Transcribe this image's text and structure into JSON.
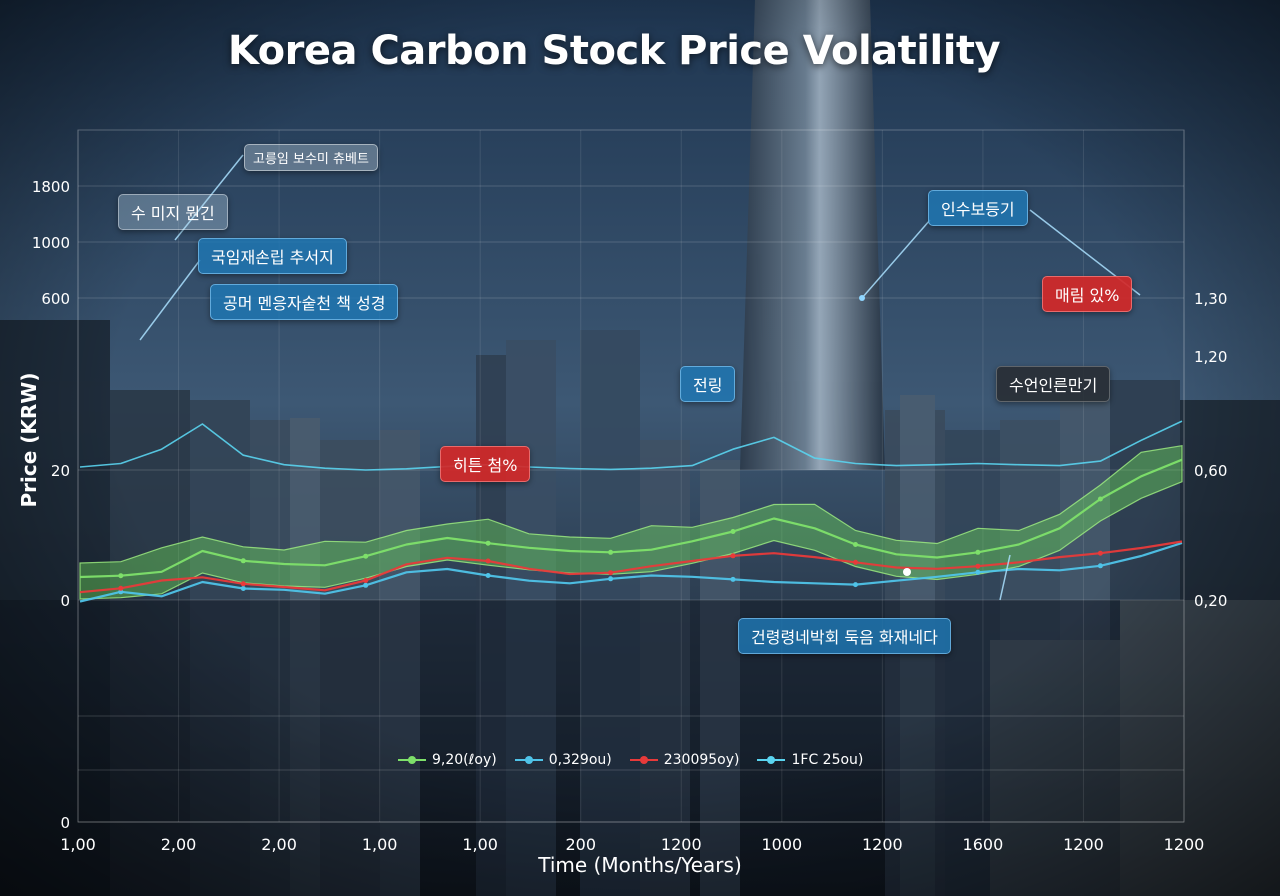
{
  "chart_data": {
    "type": "line",
    "title": "Korea Carbon Stock Price Volatility",
    "xlabel": "Time (Months/Years)",
    "ylabel": "Price (KRW)",
    "x_tick_labels": [
      "1,00",
      "2,00",
      "2,00",
      "1,00",
      "1,00",
      "200",
      "1200",
      "1000",
      "1200",
      "1600",
      "1200",
      "1200"
    ],
    "y_tick_labels_left": [
      "0",
      "0",
      "20",
      "600",
      "1000",
      "1800"
    ],
    "y_tick_labels_right": [
      "0,20",
      "0,60",
      "1,20",
      "1,30"
    ],
    "grid": true,
    "legend_position": "bottom-center",
    "series": [
      {
        "name": "9,20(ℓoy)",
        "color": "#7ee06a",
        "values": [
          20,
          22,
          28,
          60,
          45,
          40,
          38,
          52,
          70,
          80,
          72,
          65,
          60,
          58,
          62,
          75,
          90,
          110,
          95,
          70,
          55,
          50,
          58,
          70,
          95,
          140,
          175,
          210
        ]
      },
      {
        "name": "0,329ou)",
        "color": "#4fc3e8",
        "values": [
          10,
          25,
          18,
          40,
          30,
          28,
          22,
          35,
          55,
          60,
          50,
          42,
          38,
          45,
          50,
          48,
          44,
          40,
          38,
          36,
          42,
          48,
          55,
          60,
          58,
          65,
          80,
          100
        ]
      },
      {
        "name": "230095oy)",
        "color": "#e83a3a",
        "values": [
          12,
          18,
          30,
          35,
          25,
          20,
          15,
          30,
          55,
          65,
          60,
          48,
          40,
          42,
          52,
          60,
          68,
          72,
          66,
          58,
          50,
          48,
          52,
          58,
          66,
          72,
          80,
          90
        ]
      },
      {
        "name": "1FC 25ou)",
        "color": "#5ad4f0",
        "values": [
          300,
          420,
          900,
          1750,
          700,
          380,
          260,
          200,
          240,
          320,
          380,
          300,
          250,
          220,
          260,
          350,
          900,
          1300,
          600,
          420,
          350,
          380,
          420,
          380,
          350,
          500,
          1200,
          1850
        ]
      }
    ],
    "annotations": [
      "고릉임 보수미 츄베트",
      "수 미지 뭔긴",
      "국임재손립 추서지",
      "공머 멘응자숱천 책 성경",
      "히튼 첨%",
      "전링",
      "인수보등기",
      "매림 있%",
      "수언인른만기",
      "건령령네박회 둑음 화재네다"
    ]
  }
}
